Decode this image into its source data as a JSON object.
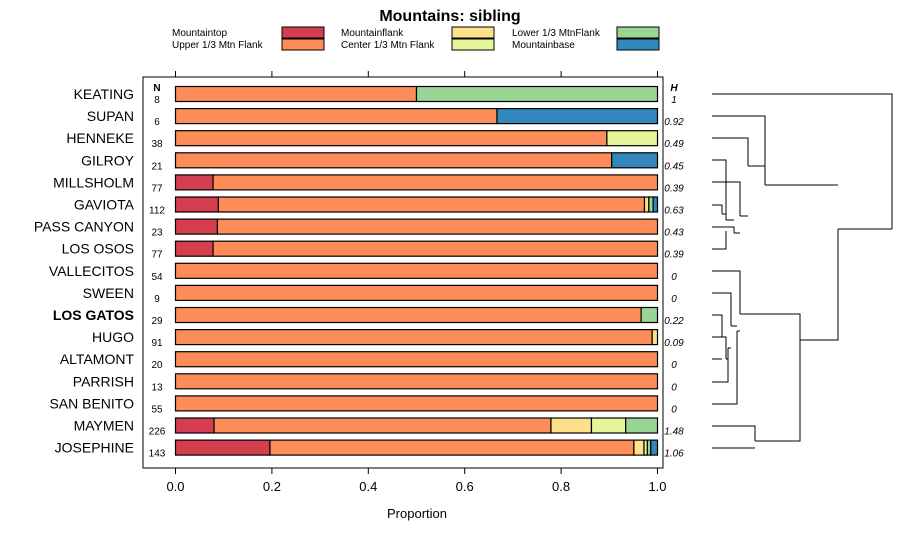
{
  "chart_data": {
    "type": "bar",
    "stacked": true,
    "orientation": "horizontal",
    "title": "Mountains: sibling",
    "xlabel": "Proportion",
    "xlim": [
      0,
      1
    ],
    "xticks": [
      "0.0",
      "0.2",
      "0.4",
      "0.6",
      "0.8",
      "1.0"
    ],
    "n_header": "N",
    "h_header": "H",
    "legend_position": "top",
    "legend": [
      {
        "name": "Mountaintop",
        "color": "#D53E4F"
      },
      {
        "name": "Upper 1/3 Mtn Flank",
        "color": "#FC8D59"
      },
      {
        "name": "Mountainflank",
        "color": "#FEE08B"
      },
      {
        "name": "Center 1/3 Mtn Flank",
        "color": "#E6F598"
      },
      {
        "name": "Lower 1/3 MtnFlank",
        "color": "#99D594"
      },
      {
        "name": "Mountainbase",
        "color": "#3288BD"
      }
    ],
    "categories": [
      "KEATING",
      "SUPAN",
      "HENNEKE",
      "GILROY",
      "MILLSHOLM",
      "GAVIOTA",
      "PASS CANYON",
      "LOS OSOS",
      "VALLECITOS",
      "SWEEN",
      "LOS GATOS",
      "HUGO",
      "ALTAMONT",
      "PARRISH",
      "SAN BENITO",
      "MAYMEN",
      "JOSEPHINE"
    ],
    "bold_category": "LOS GATOS",
    "n": [
      "8",
      "6",
      "38",
      "21",
      "77",
      "112",
      "23",
      "77",
      "54",
      "9",
      "29",
      "91",
      "20",
      "13",
      "55",
      "226",
      "143"
    ],
    "h": [
      "1",
      "0.92",
      "0.49",
      "0.45",
      "0.39",
      "0.63",
      "0.43",
      "0.39",
      "0",
      "0",
      "0.22",
      "0.09",
      "0",
      "0",
      "0",
      "1.48",
      "1.06"
    ],
    "series": [
      {
        "name": "Mountaintop",
        "values": [
          0,
          0,
          0,
          0,
          0.078,
          0.089,
          0.087,
          0.078,
          0,
          0,
          0,
          0,
          0,
          0,
          0,
          0.08,
          0.196
        ]
      },
      {
        "name": "Upper 1/3 Mtn Flank",
        "values": [
          0.5,
          0.667,
          0.895,
          0.905,
          0.922,
          0.884,
          0.913,
          0.922,
          1,
          1,
          0.966,
          0.989,
          1,
          1,
          1,
          0.699,
          0.755
        ]
      },
      {
        "name": "Mountainflank",
        "values": [
          0,
          0,
          0,
          0,
          0,
          0.009,
          0,
          0,
          0,
          0,
          0,
          0.011,
          0,
          0,
          0,
          0.084,
          0.021
        ]
      },
      {
        "name": "Center 1/3 Mtn Flank",
        "values": [
          0,
          0,
          0.105,
          0,
          0,
          0,
          0,
          0,
          0,
          0,
          0,
          0,
          0,
          0,
          0,
          0.071,
          0.007
        ]
      },
      {
        "name": "Lower 1/3 MtnFlank",
        "values": [
          0.5,
          0,
          0,
          0,
          0,
          0.009,
          0,
          0,
          0,
          0,
          0.034,
          0,
          0,
          0,
          0,
          0.066,
          0.007
        ]
      },
      {
        "name": "Mountainbase",
        "values": [
          0,
          0.333,
          0,
          0.095,
          0,
          0.009,
          0,
          0,
          0,
          0,
          0,
          0,
          0,
          0,
          0,
          0,
          0.014
        ]
      }
    ]
  }
}
